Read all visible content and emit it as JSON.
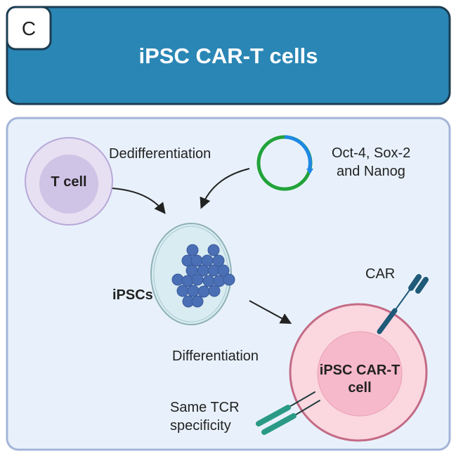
{
  "panel_label": "C",
  "title": "iPSC CAR-T cells",
  "labels": {
    "t_cell": "T cell",
    "dedifferentiation": "Dedifferentiation",
    "factors_line1": "Oct-4, Sox-2",
    "factors_line2": "and Nanog",
    "ipscs": "iPSCs",
    "differentiation": "Differentiation",
    "car": "CAR",
    "car_t_line1": "iPSC CAR-T",
    "car_t_line2": "cell",
    "tcr_line1": "Same TCR",
    "tcr_line2": "specificity"
  },
  "colors": {
    "header": "#2a86b5",
    "panel": "#e8f1fb",
    "t_cell": "#e6e0f2",
    "car_t_cell": "#fbd7e0",
    "plasmid_green": "#22a33a",
    "plasmid_blue": "#1e88e5",
    "ipsc": "#4a6fb5",
    "car_receptor": "#1f5a78",
    "tcr": "#2a9a86"
  }
}
